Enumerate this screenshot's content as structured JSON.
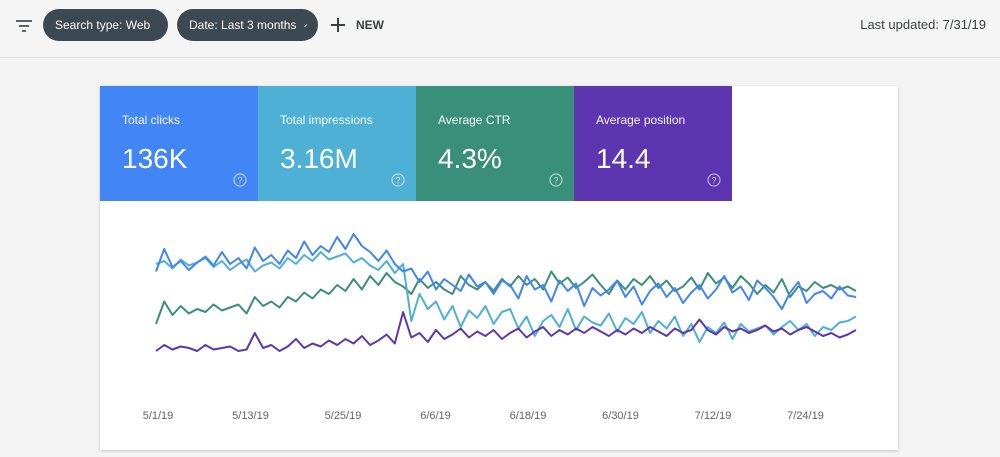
{
  "toolbar": {
    "filter_icon": "filter-list-icon",
    "chips": [
      {
        "label": "Search type: Web",
        "icon": "pencil-icon"
      },
      {
        "label": "Date: Last 3 months",
        "icon": "pencil-icon"
      }
    ],
    "new_label": "NEW",
    "last_updated": "Last updated: 7/31/19"
  },
  "metrics": [
    {
      "label": "Total clicks",
      "value": "136K",
      "color": "#4285f4"
    },
    {
      "label": "Total impressions",
      "value": "3.16M",
      "color": "#4db0d4"
    },
    {
      "label": "Average CTR",
      "value": "4.3%",
      "color": "#3a8f7a"
    },
    {
      "label": "Average position",
      "value": "14.4",
      "color": "#5e35b1"
    }
  ],
  "chart_data": {
    "type": "line",
    "title": "",
    "xlabel": "",
    "ylabel": "",
    "x_tick_labels": [
      "5/1/19",
      "5/13/19",
      "5/25/19",
      "6/6/19",
      "6/18/19",
      "6/30/19",
      "7/12/19",
      "7/24/19"
    ],
    "grid": false,
    "series": [
      {
        "color": "#3a8f7a",
        "values": [
          70,
          55,
          64,
          58,
          63,
          60,
          62,
          57,
          61,
          59,
          57,
          63,
          52,
          58,
          55,
          59,
          52,
          55,
          49,
          53,
          47,
          50,
          44,
          48,
          40,
          47,
          38,
          44,
          36,
          42,
          45,
          50,
          40,
          46,
          42,
          47,
          50,
          38,
          44,
          47,
          42,
          48,
          40,
          45,
          38,
          44,
          40,
          47,
          35,
          43,
          39,
          46,
          42,
          37,
          44,
          50,
          41,
          47,
          40,
          44,
          38,
          46,
          41,
          48,
          45,
          39,
          47,
          36,
          43,
          39,
          46,
          38,
          43,
          50,
          44,
          49,
          40,
          52,
          45,
          48,
          42,
          46,
          44,
          47,
          45,
          48
        ]
      },
      {
        "color": "#4db0d4",
        "values": [
          30,
          28,
          33,
          27,
          31,
          29,
          26,
          32,
          28,
          34,
          30,
          27,
          35,
          31,
          29,
          33,
          26,
          30,
          24,
          28,
          22,
          27,
          25,
          23,
          29,
          26,
          31,
          34,
          28,
          36,
          30,
          68,
          50,
          60,
          55,
          67,
          58,
          72,
          61,
          66,
          58,
          70,
          62,
          60,
          73,
          65,
          78,
          68,
          64,
          72,
          60,
          74,
          65,
          69,
          71,
          63,
          75,
          66,
          70,
          62,
          76,
          68,
          73,
          65,
          78,
          70,
          82,
          72,
          76,
          69,
          80,
          70,
          75,
          73,
          71,
          77,
          72,
          68,
          74,
          70,
          78,
          72,
          74,
          69,
          68,
          65
        ]
      },
      {
        "color": "#4285f4",
        "values": [
          35,
          20,
          32,
          28,
          34,
          29,
          25,
          31,
          22,
          30,
          26,
          33,
          19,
          28,
          24,
          30,
          21,
          26,
          15,
          24,
          18,
          22,
          12,
          20,
          10,
          18,
          22,
          28,
          21,
          30,
          35,
          33,
          42,
          35,
          47,
          40,
          44,
          48,
          37,
          45,
          42,
          50,
          41,
          44,
          53,
          38,
          47,
          44,
          55,
          41,
          48,
          43,
          58,
          46,
          51,
          47,
          41,
          52,
          45,
          57,
          48,
          43,
          52,
          46,
          56,
          49,
          44,
          53,
          47,
          38,
          49,
          45,
          54,
          41,
          46,
          52,
          60,
          49,
          42,
          56,
          50,
          48,
          53,
          45,
          51,
          52
        ]
      },
      {
        "color": "#5e35b1",
        "values": [
          88,
          84,
          87,
          85,
          86,
          88,
          84,
          87,
          86,
          85,
          88,
          87,
          76,
          86,
          84,
          88,
          85,
          80,
          86,
          83,
          85,
          81,
          84,
          80,
          83,
          78,
          84,
          81,
          77,
          83,
          62,
          79,
          76,
          82,
          74,
          80,
          77,
          73,
          79,
          75,
          78,
          74,
          80,
          76,
          73,
          79,
          75,
          72,
          78,
          74,
          77,
          73,
          76,
          72,
          75,
          78,
          74,
          77,
          73,
          76,
          72,
          75,
          78,
          73,
          76,
          74,
          67,
          74,
          77,
          72,
          75,
          73,
          76,
          74,
          71,
          75,
          73,
          77,
          74,
          72,
          75,
          78,
          76,
          79,
          77,
          74
        ]
      }
    ]
  }
}
